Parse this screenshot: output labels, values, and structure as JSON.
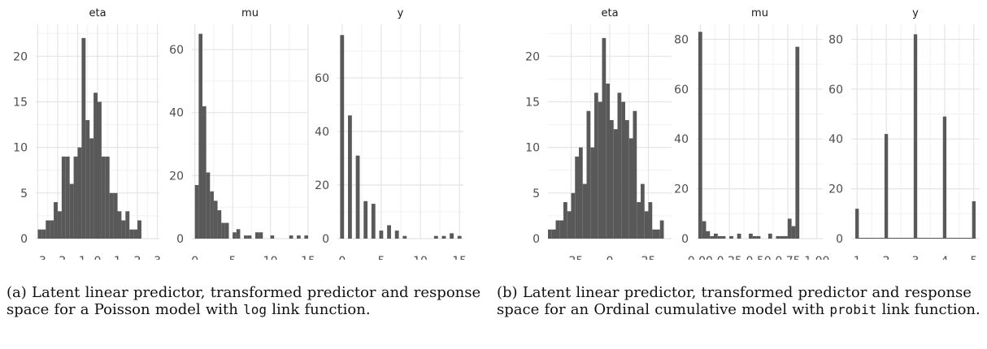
{
  "figure": {
    "caption_a": {
      "label": "(a)",
      "before": "Latent linear predictor, transformed predictor and response space for a Poisson model with",
      "code": "log",
      "after": "link function."
    },
    "caption_b": {
      "label": "(b)",
      "before": "Latent linear predictor, transformed predictor and response space for an Ordinal cumulative model with",
      "code": "probit",
      "after": "link function."
    }
  },
  "chart_data": [
    {
      "type": "bar",
      "title": "eta",
      "xlim": [
        -3.1,
        3.1
      ],
      "ylim": [
        0,
        23.5
      ],
      "x_ticks": [
        -3,
        -2,
        -1,
        0,
        1,
        2,
        3
      ],
      "x_tick_labels": [
        "−3",
        "−2",
        "−1",
        "0",
        "1",
        "2",
        "3"
      ],
      "y_ticks": [
        0,
        5,
        10,
        15,
        20
      ],
      "y_tick_labels": [
        "0",
        "5",
        "10",
        "15",
        "20"
      ],
      "grid": true,
      "bins": {
        "start": -3.0,
        "width": 0.2
      },
      "values": [
        1,
        1,
        2,
        2,
        4,
        3,
        9,
        9,
        6,
        9,
        10,
        22,
        13,
        11,
        16,
        15,
        9,
        9,
        5,
        5,
        3,
        2,
        3,
        1,
        1,
        2
      ]
    },
    {
      "type": "bar",
      "title": "mu",
      "xlim": [
        -0.4,
        15.0
      ],
      "ylim": [
        0,
        68
      ],
      "x_ticks": [
        0,
        5,
        10,
        15
      ],
      "x_tick_labels": [
        "0",
        "5",
        "10",
        "15"
      ],
      "y_ticks": [
        0,
        20,
        40,
        60
      ],
      "y_tick_labels": [
        "0",
        "20",
        "40",
        "60"
      ],
      "grid": true,
      "bins": {
        "start": 0.0,
        "width": 0.5
      },
      "values": [
        17,
        65,
        42,
        21,
        15,
        12,
        9,
        5,
        5,
        0,
        2,
        3,
        0,
        1,
        1,
        0,
        2,
        2,
        0,
        0,
        1,
        0,
        0,
        0,
        0,
        1,
        0,
        1,
        0,
        1
      ]
    },
    {
      "type": "bar",
      "title": "y",
      "xlim": [
        -0.6,
        15.5
      ],
      "ylim": [
        0,
        80
      ],
      "x_ticks": [
        0,
        5,
        10,
        15
      ],
      "x_tick_labels": [
        "0",
        "5",
        "10",
        "15"
      ],
      "y_ticks": [
        0,
        20,
        40,
        60
      ],
      "y_tick_labels": [
        "0",
        "20",
        "40",
        "60"
      ],
      "grid": true,
      "bins": {
        "start": -0.25,
        "width": 0.5
      },
      "values": [
        76,
        0,
        46,
        0,
        31,
        0,
        14,
        0,
        13,
        0,
        3,
        0,
        5,
        0,
        3,
        0,
        1,
        0,
        0,
        0,
        0,
        0,
        0,
        0,
        1,
        0,
        1,
        0,
        2,
        0,
        1
      ]
    },
    {
      "type": "bar",
      "title": "eta",
      "xlim": [
        -40,
        40
      ],
      "ylim": [
        0,
        23.5
      ],
      "x_ticks": [
        -25,
        0,
        25
      ],
      "x_tick_labels": [
        "−25",
        "0",
        "25"
      ],
      "y_ticks": [
        0,
        5,
        10,
        15,
        20
      ],
      "y_tick_labels": [
        "0",
        "5",
        "10",
        "15",
        "20"
      ],
      "grid": true,
      "bins": {
        "start": -40,
        "width": 2.5
      },
      "values": [
        1,
        1,
        2,
        2,
        4,
        3,
        5,
        9,
        10,
        6,
        14,
        10,
        16,
        15,
        22,
        17,
        13,
        12,
        16,
        15,
        13,
        11,
        14,
        4,
        6,
        3,
        4,
        1,
        1,
        2
      ]
    },
    {
      "type": "bar",
      "title": "mu",
      "xlim": [
        -0.03,
        1.05
      ],
      "ylim": [
        0,
        86
      ],
      "x_ticks": [
        0,
        0.25,
        0.5,
        0.75,
        1.0
      ],
      "x_tick_labels": [
        "0.00",
        "0.25",
        "0.50",
        "0.75",
        "1.00"
      ],
      "y_ticks": [
        0,
        20,
        40,
        60,
        80
      ],
      "y_tick_labels": [
        "0",
        "20",
        "40",
        "60",
        "80"
      ],
      "grid": true,
      "bins": {
        "start": -0.0167,
        "width": 0.0333
      },
      "values": [
        83,
        7,
        3,
        1,
        2,
        1,
        1,
        0,
        1,
        0,
        2,
        0,
        0,
        2,
        1,
        1,
        0,
        0,
        2,
        0,
        1,
        1,
        1,
        8,
        5,
        77
      ]
    },
    {
      "type": "bar",
      "title": "y",
      "xlim": [
        0.8,
        5.2
      ],
      "ylim": [
        0,
        86
      ],
      "x_ticks": [
        1,
        2,
        3,
        4,
        5
      ],
      "x_tick_labels": [
        "1",
        "2",
        "3",
        "4",
        "5"
      ],
      "y_ticks": [
        0,
        20,
        40,
        60,
        80
      ],
      "y_tick_labels": [
        "0",
        "20",
        "40",
        "60",
        "80"
      ],
      "grid": true,
      "categories": [
        "1",
        "2",
        "3",
        "4",
        "5"
      ],
      "values": [
        12,
        42,
        82,
        49,
        15
      ]
    }
  ]
}
